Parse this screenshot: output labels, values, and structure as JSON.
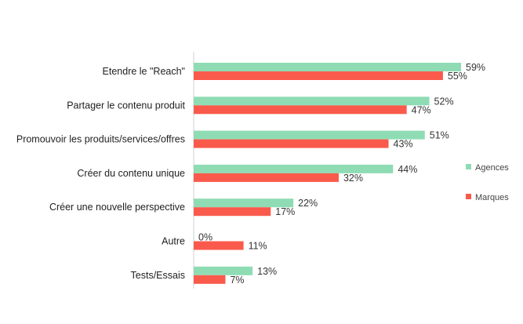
{
  "chart_data": {
    "type": "bar",
    "orientation": "horizontal",
    "categories": [
      "Etendre le \"Reach\"",
      "Partager le contenu produit",
      "Promouvoir les produits/services/offres",
      "Créer du contenu unique",
      "Créer une nouvelle perspective",
      "Autre",
      "Tests/Essais"
    ],
    "series": [
      {
        "name": "Agences",
        "color": "#8fdcb4",
        "values": [
          59,
          52,
          51,
          44,
          22,
          0,
          13
        ],
        "labels": [
          "59%",
          "52%",
          "51%",
          "44%",
          "22%",
          "0%",
          "13%"
        ]
      },
      {
        "name": "Marques",
        "color": "#fa5a4b",
        "values": [
          55,
          47,
          43,
          32,
          17,
          11,
          7
        ],
        "labels": [
          "55%",
          "47%",
          "43%",
          "32%",
          "17%",
          "11%",
          "7%"
        ]
      }
    ],
    "unit": "%",
    "xlim": [
      0,
      70
    ],
    "legend_position": "right",
    "grid": false
  }
}
